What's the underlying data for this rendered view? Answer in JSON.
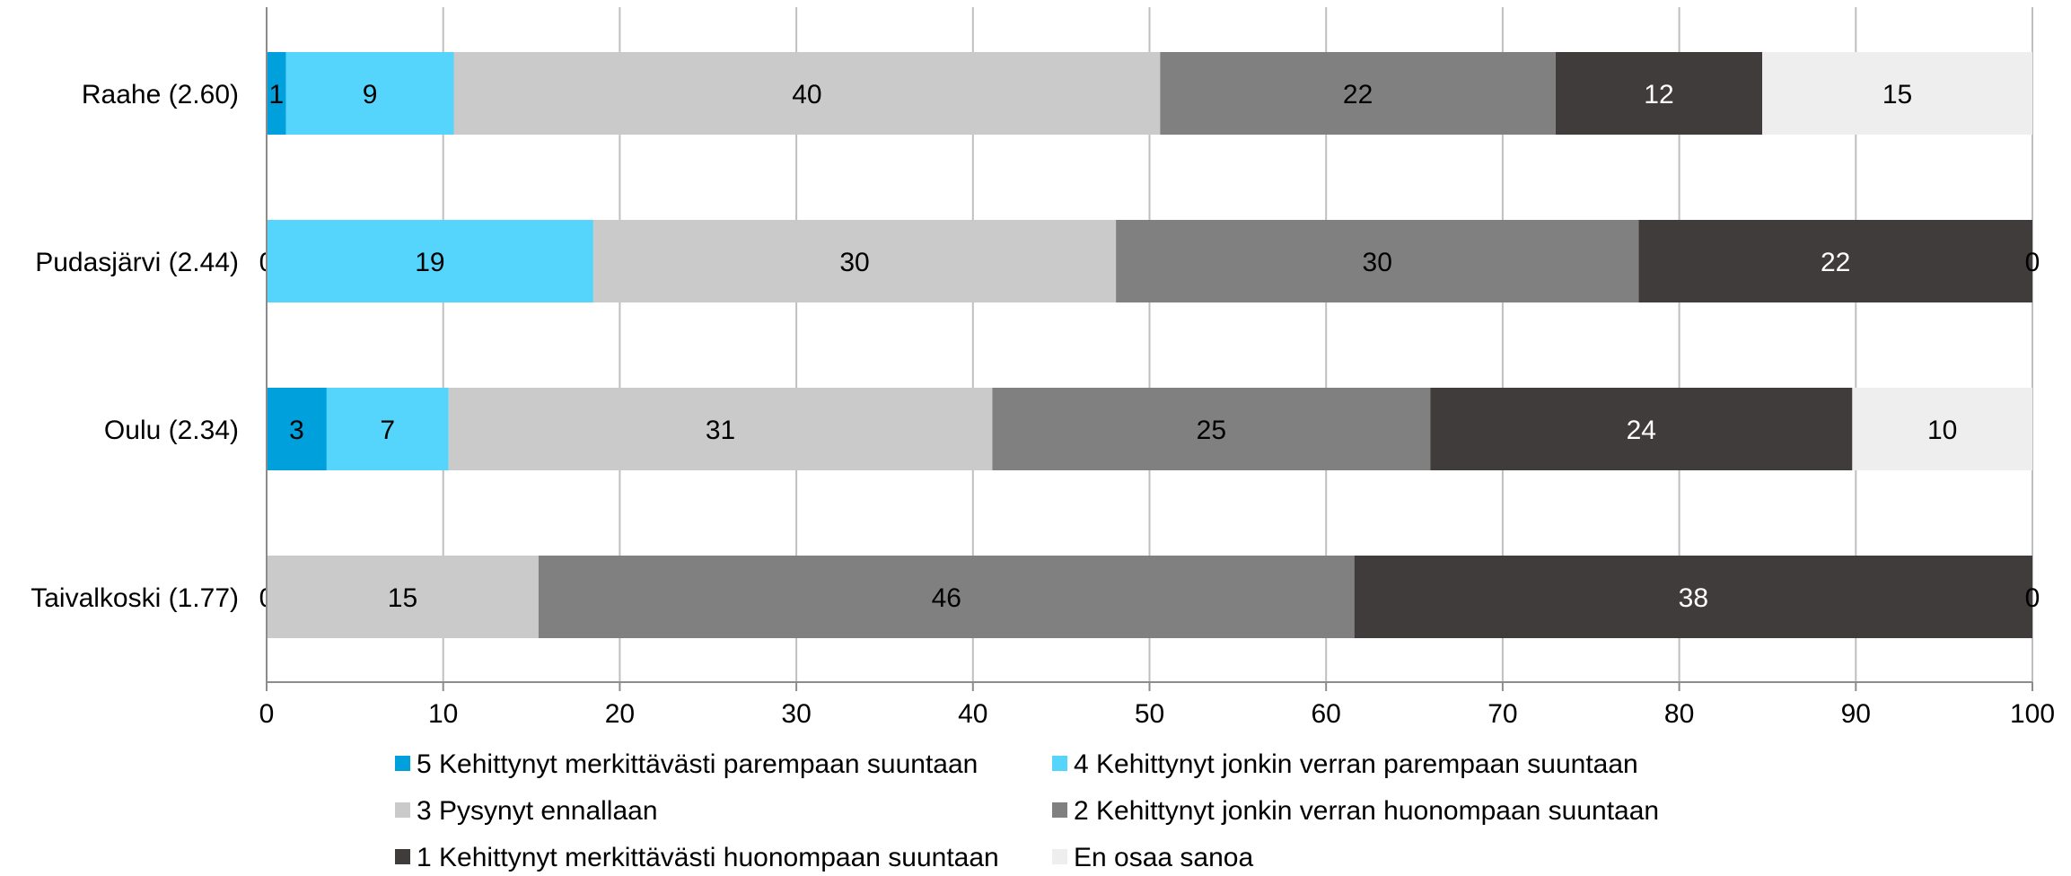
{
  "chart_data": {
    "type": "bar",
    "orientation": "horizontal",
    "stacked": true,
    "categories": [
      "Raahe (2.60)",
      "Pudasjärvi (2.44)",
      "Oulu (2.34)",
      "Taivalkoski (1.77)"
    ],
    "series": [
      {
        "name": "5 Kehittynyt merkittävästi parempaan suuntaan",
        "color": "#00A0DC",
        "values": [
          1.1,
          0,
          3.4,
          0
        ],
        "labels": [
          "1",
          "0",
          "3",
          "0"
        ]
      },
      {
        "name": "4 Kehittynyt jonkin verran parempaan suuntaan",
        "color": "#55D4FC",
        "values": [
          9.5,
          18.5,
          6.9,
          0
        ],
        "labels": [
          "9",
          "19",
          "7",
          ""
        ]
      },
      {
        "name": "3 Pysynyt ennallaan",
        "color": "#CACACA",
        "values": [
          40.0,
          29.6,
          30.8,
          15.4
        ],
        "labels": [
          "40",
          "30",
          "31",
          "15"
        ]
      },
      {
        "name": "2 Kehittynyt jonkin verran huonompaan suuntaan",
        "color": "#808080",
        "values": [
          22.4,
          29.6,
          24.8,
          46.2
        ],
        "labels": [
          "22",
          "30",
          "25",
          "46"
        ]
      },
      {
        "name": "1 Kehittynyt merkittävästi huonompaan suuntaan",
        "color": "#403C3C",
        "values": [
          11.7,
          22.3,
          23.9,
          38.4
        ],
        "labels": [
          "12",
          "22",
          "24",
          "38"
        ]
      },
      {
        "name": "En osaa sanoa",
        "color": "#EEEEEE",
        "values": [
          15.3,
          0,
          10.2,
          0
        ],
        "labels": [
          "15",
          "0",
          "10",
          "0"
        ]
      }
    ],
    "xlim": [
      0,
      100
    ],
    "xticks": [
      0,
      10,
      20,
      30,
      40,
      50,
      60,
      70,
      80,
      90,
      100
    ],
    "grid": true,
    "legend_position": "bottom"
  }
}
